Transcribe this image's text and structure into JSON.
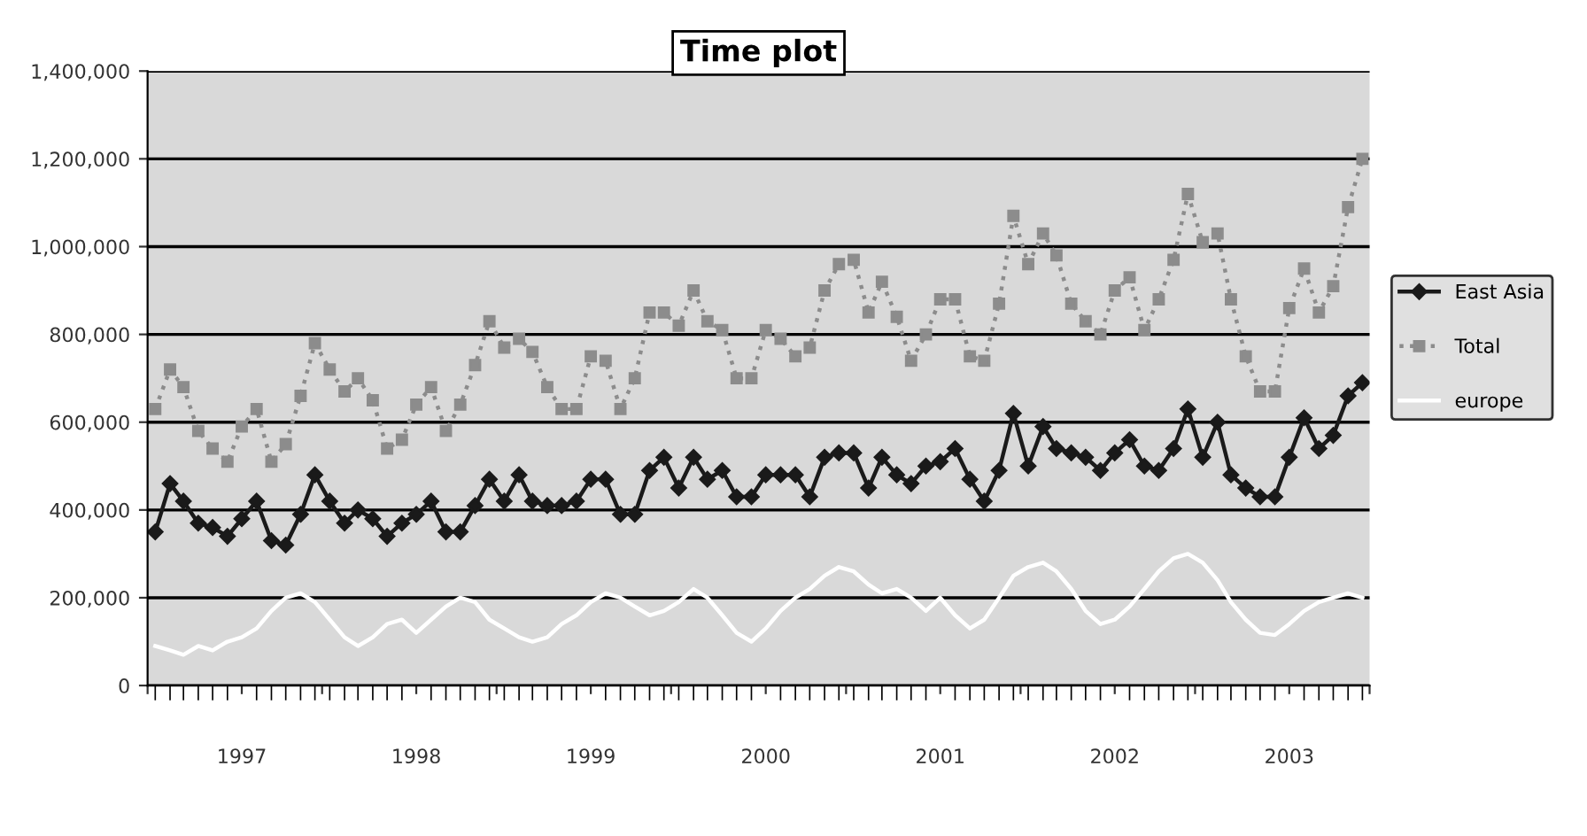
{
  "chart_data": {
    "type": "line",
    "title": "Time plot",
    "x": [
      "1997-01",
      "1997-02",
      "1997-03",
      "1997-04",
      "1997-05",
      "1997-06",
      "1997-07",
      "1997-08",
      "1997-09",
      "1997-10",
      "1997-11",
      "1997-12",
      "1998-01",
      "1998-02",
      "1998-03",
      "1998-04",
      "1998-05",
      "1998-06",
      "1998-07",
      "1998-08",
      "1998-09",
      "1998-10",
      "1998-11",
      "1998-12",
      "1999-01",
      "1999-02",
      "1999-03",
      "1999-04",
      "1999-05",
      "1999-06",
      "1999-07",
      "1999-08",
      "1999-09",
      "1999-10",
      "1999-11",
      "1999-12",
      "2000-01",
      "2000-02",
      "2000-03",
      "2000-04",
      "2000-05",
      "2000-06",
      "2000-07",
      "2000-08",
      "2000-09",
      "2000-10",
      "2000-11",
      "2000-12",
      "2001-01",
      "2001-02",
      "2001-03",
      "2001-04",
      "2001-05",
      "2001-06",
      "2001-07",
      "2001-08",
      "2001-09",
      "2001-10",
      "2001-11",
      "2001-12",
      "2002-01",
      "2002-02",
      "2002-03",
      "2002-04",
      "2002-05",
      "2002-06",
      "2002-07",
      "2002-08",
      "2002-09",
      "2002-10",
      "2002-11",
      "2002-12",
      "2003-01",
      "2003-02",
      "2003-03",
      "2003-04",
      "2003-05",
      "2003-06",
      "2003-07",
      "2003-08",
      "2003-09",
      "2003-10",
      "2003-11",
      "2003-12"
    ],
    "series": [
      {
        "name": "East Asia",
        "color": "#1a1a1a",
        "marker": "diamond",
        "line_style": "solid",
        "values": [
          350000,
          460000,
          420000,
          370000,
          360000,
          340000,
          380000,
          420000,
          330000,
          320000,
          390000,
          480000,
          420000,
          370000,
          400000,
          380000,
          340000,
          370000,
          390000,
          420000,
          350000,
          350000,
          410000,
          470000,
          420000,
          480000,
          420000,
          410000,
          410000,
          420000,
          470000,
          470000,
          390000,
          390000,
          490000,
          520000,
          450000,
          520000,
          470000,
          490000,
          430000,
          430000,
          480000,
          480000,
          480000,
          430000,
          520000,
          530000,
          530000,
          450000,
          520000,
          480000,
          460000,
          500000,
          510000,
          540000,
          470000,
          420000,
          490000,
          620000,
          500000,
          590000,
          540000,
          530000,
          520000,
          490000,
          530000,
          560000,
          500000,
          490000,
          540000,
          630000,
          520000,
          600000,
          480000,
          450000,
          430000,
          430000,
          520000,
          610000,
          540000,
          570000,
          660000,
          690000
        ]
      },
      {
        "name": "Total",
        "color": "#8c8c8c",
        "marker": "square",
        "line_style": "dotted",
        "values": [
          630000,
          720000,
          680000,
          580000,
          540000,
          510000,
          590000,
          630000,
          510000,
          550000,
          660000,
          780000,
          720000,
          670000,
          700000,
          650000,
          540000,
          560000,
          640000,
          680000,
          580000,
          640000,
          730000,
          830000,
          770000,
          790000,
          760000,
          680000,
          630000,
          630000,
          750000,
          740000,
          630000,
          700000,
          850000,
          850000,
          820000,
          900000,
          830000,
          810000,
          700000,
          700000,
          810000,
          790000,
          750000,
          770000,
          900000,
          960000,
          970000,
          850000,
          920000,
          840000,
          740000,
          800000,
          880000,
          880000,
          750000,
          740000,
          870000,
          1070000,
          960000,
          1030000,
          980000,
          870000,
          830000,
          800000,
          900000,
          930000,
          810000,
          880000,
          970000,
          1120000,
          1010000,
          1030000,
          880000,
          750000,
          670000,
          670000,
          860000,
          950000,
          850000,
          910000,
          1090000,
          1200000
        ]
      },
      {
        "name": "europe",
        "color": "#ffffff",
        "marker": "none",
        "line_style": "solid",
        "values": [
          90000,
          80000,
          70000,
          90000,
          80000,
          100000,
          110000,
          130000,
          170000,
          200000,
          210000,
          190000,
          150000,
          110000,
          90000,
          110000,
          140000,
          150000,
          120000,
          150000,
          180000,
          200000,
          190000,
          150000,
          130000,
          110000,
          100000,
          110000,
          140000,
          160000,
          190000,
          210000,
          200000,
          180000,
          160000,
          170000,
          190000,
          220000,
          200000,
          160000,
          120000,
          100000,
          130000,
          170000,
          200000,
          220000,
          250000,
          270000,
          260000,
          230000,
          210000,
          220000,
          200000,
          170000,
          200000,
          160000,
          130000,
          150000,
          200000,
          250000,
          270000,
          280000,
          260000,
          220000,
          170000,
          140000,
          150000,
          180000,
          220000,
          260000,
          290000,
          300000,
          280000,
          240000,
          190000,
          150000,
          120000,
          115000,
          140000,
          170000,
          190000,
          200000,
          210000,
          200000
        ]
      }
    ],
    "xlim": [
      "1996-12-16",
      "2003-12-16"
    ],
    "xticks": [
      {
        "value": "1996-12-16",
        "label": null
      },
      {
        "value": "1997-07-01",
        "label": "1997"
      },
      {
        "value": "1997-12-16",
        "label": null
      },
      {
        "value": "1998-07-01",
        "label": "1998"
      },
      {
        "value": "1998-12-16",
        "label": null
      },
      {
        "value": "1999-07-01",
        "label": "1999"
      },
      {
        "value": "1999-12-16",
        "label": null
      },
      {
        "value": "2000-07-01",
        "label": "2000"
      },
      {
        "value": "2000-12-16",
        "label": null
      },
      {
        "value": "2001-07-01",
        "label": "2001"
      },
      {
        "value": "2001-12-16",
        "label": null
      },
      {
        "value": "2002-07-01",
        "label": "2002"
      },
      {
        "value": "2002-12-16",
        "label": null
      },
      {
        "value": "2003-07-01",
        "label": "2003"
      },
      {
        "value": "2003-12-16",
        "label": null
      }
    ],
    "ylim": [
      0,
      1400000
    ],
    "yticks": [
      {
        "value": 0,
        "label": "0"
      },
      {
        "value": 200000,
        "label": "200,000"
      },
      {
        "value": 400000,
        "label": "400,000"
      },
      {
        "value": 600000,
        "label": "600,000"
      },
      {
        "value": 800000,
        "label": "800,000"
      },
      {
        "value": 1000000,
        "label": "1,000,000"
      },
      {
        "value": 1200000,
        "label": "1,200,000"
      },
      {
        "value": 1400000,
        "label": "1,400,000"
      }
    ],
    "grid": "y",
    "legend": "right"
  }
}
